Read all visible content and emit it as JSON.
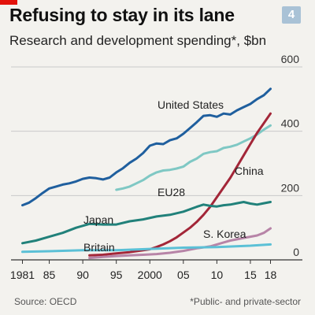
{
  "header": {
    "title": "Refusing to stay in its lane",
    "subtitle": "Research and development spending*, $bn",
    "badge": "4"
  },
  "footer": {
    "source": "Source: OECD",
    "footnote": "*Public- and private-sector"
  },
  "colors": {
    "accent_red": "#e3120b",
    "gridline": "#c9c9c9",
    "badge": "#a9c2d6"
  },
  "chart_data": {
    "type": "line",
    "ylim": [
      0,
      600
    ],
    "xlim": [
      1980,
      2019
    ],
    "yticks": [
      0,
      200,
      400,
      600
    ],
    "ytick_labels": [
      "0",
      "200",
      "400",
      "600"
    ],
    "xticks": [
      1981,
      1985,
      1990,
      1995,
      2000,
      2005,
      2010,
      2015,
      2018
    ],
    "xtick_labels": [
      "1981",
      "85",
      "90",
      "95",
      "2000",
      "05",
      "10",
      "15",
      "18"
    ],
    "grid": true,
    "series": [
      {
        "name": "United States",
        "color": "#1f5f9e",
        "x": [
          1981,
          1982,
          1983,
          1984,
          1985,
          1986,
          1987,
          1988,
          1989,
          1990,
          1991,
          1992,
          1993,
          1994,
          1995,
          1996,
          1997,
          1998,
          1999,
          2000,
          2001,
          2002,
          2003,
          2004,
          2005,
          2006,
          2007,
          2008,
          2009,
          2010,
          2011,
          2012,
          2013,
          2014,
          2015,
          2016,
          2017,
          2018
        ],
        "values": [
          170,
          178,
          192,
          208,
          222,
          228,
          234,
          238,
          244,
          252,
          256,
          254,
          250,
          256,
          272,
          285,
          302,
          315,
          332,
          355,
          362,
          360,
          372,
          378,
          392,
          410,
          428,
          448,
          450,
          445,
          455,
          452,
          465,
          475,
          485,
          500,
          512,
          532
        ]
      },
      {
        "name": "EU28",
        "color": "#7fc8c4",
        "x": [
          1995,
          1996,
          1997,
          1998,
          1999,
          2000,
          2001,
          2002,
          2003,
          2004,
          2005,
          2006,
          2007,
          2008,
          2009,
          2010,
          2011,
          2012,
          2013,
          2014,
          2015,
          2016,
          2017,
          2018
        ],
        "values": [
          218,
          222,
          228,
          238,
          248,
          262,
          272,
          278,
          280,
          284,
          290,
          305,
          315,
          330,
          335,
          338,
          348,
          352,
          358,
          368,
          378,
          390,
          405,
          418
        ]
      },
      {
        "name": "China",
        "color": "#a32638",
        "x": [
          1991,
          1993,
          1995,
          1997,
          1999,
          2000,
          2001,
          2002,
          2003,
          2004,
          2005,
          2006,
          2007,
          2008,
          2009,
          2010,
          2011,
          2012,
          2013,
          2014,
          2015,
          2016,
          2017,
          2018
        ],
        "values": [
          14,
          16,
          20,
          24,
          30,
          33,
          40,
          48,
          58,
          70,
          85,
          100,
          118,
          140,
          165,
          195,
          225,
          255,
          290,
          325,
          360,
          395,
          425,
          455
        ]
      },
      {
        "name": "Japan",
        "color": "#21817a",
        "x": [
          1981,
          1983,
          1985,
          1987,
          1989,
          1991,
          1993,
          1995,
          1997,
          1999,
          2001,
          2003,
          2005,
          2007,
          2008,
          2009,
          2010,
          2011,
          2012,
          2013,
          2014,
          2015,
          2016,
          2017,
          2018
        ],
        "values": [
          52,
          60,
          72,
          84,
          100,
          112,
          110,
          110,
          120,
          126,
          135,
          140,
          150,
          165,
          172,
          168,
          166,
          170,
          172,
          176,
          180,
          175,
          172,
          176,
          180
        ]
      },
      {
        "name": "S. Korea",
        "color": "#b784a7",
        "x": [
          1991,
          1993,
          1995,
          1997,
          1999,
          2001,
          2003,
          2005,
          2007,
          2009,
          2010,
          2011,
          2012,
          2013,
          2014,
          2015,
          2016,
          2017,
          2018
        ],
        "values": [
          6,
          9,
          12,
          14,
          16,
          18,
          22,
          28,
          36,
          42,
          48,
          54,
          60,
          64,
          68,
          72,
          76,
          84,
          98
        ]
      },
      {
        "name": "Britain",
        "color": "#5bc0d6",
        "x": [
          1981,
          1985,
          1990,
          1995,
          2000,
          2005,
          2010,
          2015,
          2018
        ],
        "values": [
          25,
          27,
          30,
          30,
          34,
          38,
          40,
          44,
          48
        ]
      }
    ],
    "labels": [
      {
        "text": "United States",
        "series": "United States"
      },
      {
        "text": "EU28",
        "series": "EU28"
      },
      {
        "text": "China",
        "series": "China"
      },
      {
        "text": "Japan",
        "series": "Japan"
      },
      {
        "text": "S. Korea",
        "series": "S. Korea"
      },
      {
        "text": "Britain",
        "series": "Britain"
      }
    ]
  }
}
